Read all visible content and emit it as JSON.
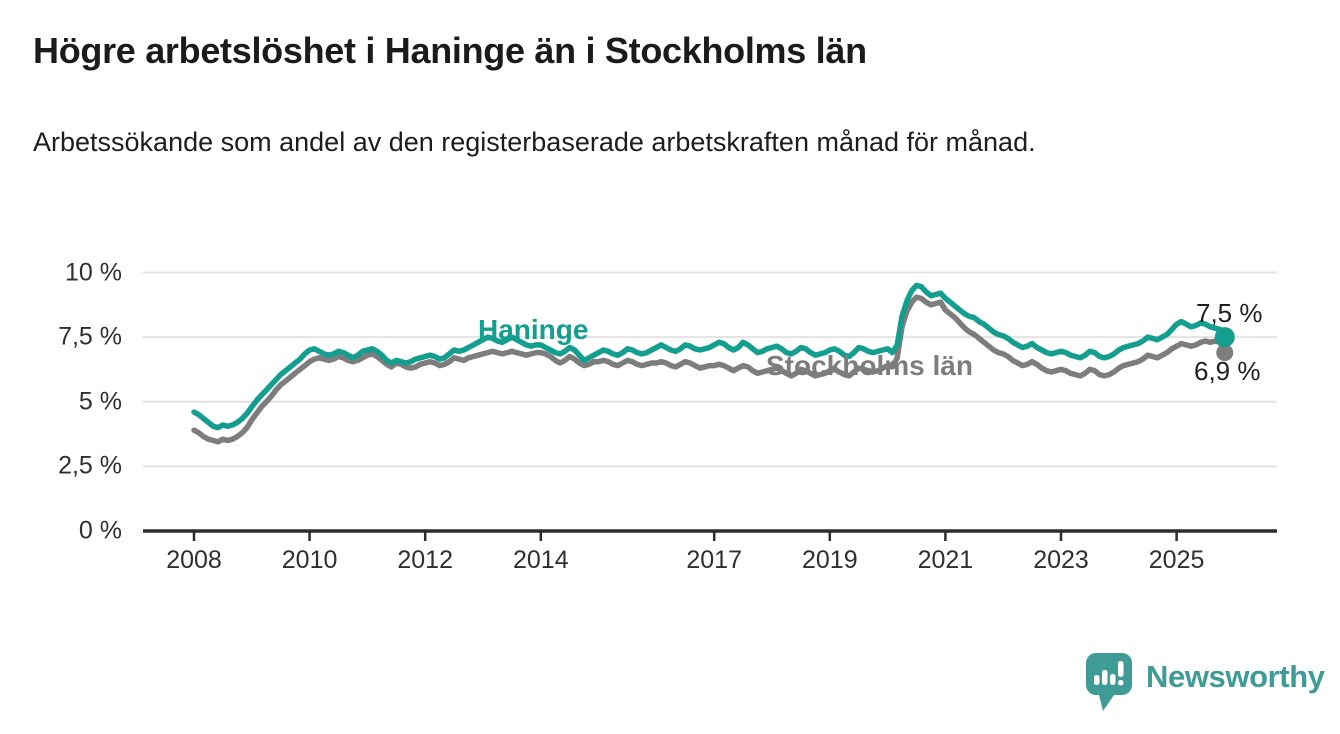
{
  "chart_data": {
    "type": "line",
    "title": "Högre arbetslöshet i Haninge än i Stockholms län",
    "subtitle": "Arbetssökande som andel av den registerbaserade arbetskraften månad för månad.",
    "unit": "%",
    "x_start": "2008-01",
    "x_end": "2025-11",
    "points_per_year": 12,
    "ylim": [
      0,
      10
    ],
    "grid": true,
    "y_ticks": [
      {
        "value": 0,
        "label": "0 %"
      },
      {
        "value": 2.5,
        "label": "2,5 %"
      },
      {
        "value": 5,
        "label": "5 %"
      },
      {
        "value": 7.5,
        "label": "7,5 %"
      },
      {
        "value": 10,
        "label": "10 %"
      }
    ],
    "x_ticks": [
      {
        "value": 2008,
        "label": "2008"
      },
      {
        "value": 2010,
        "label": "2010"
      },
      {
        "value": 2012,
        "label": "2012"
      },
      {
        "value": 2014,
        "label": "2014"
      },
      {
        "value": 2017,
        "label": "2017"
      },
      {
        "value": 2019,
        "label": "2019"
      },
      {
        "value": 2021,
        "label": "2021"
      },
      {
        "value": 2023,
        "label": "2023"
      },
      {
        "value": 2025,
        "label": "2025"
      }
    ],
    "series": [
      {
        "name": "Stockholms län",
        "color": "#7D7D7D",
        "end_label": "6,9 %",
        "end_value": 6.9,
        "values": [
          3.9,
          3.8,
          3.65,
          3.55,
          3.5,
          3.45,
          3.55,
          3.5,
          3.55,
          3.65,
          3.8,
          4.0,
          4.3,
          4.55,
          4.8,
          5.0,
          5.2,
          5.45,
          5.65,
          5.8,
          5.95,
          6.1,
          6.25,
          6.4,
          6.55,
          6.65,
          6.7,
          6.65,
          6.6,
          6.65,
          6.75,
          6.7,
          6.6,
          6.55,
          6.6,
          6.7,
          6.8,
          6.85,
          6.75,
          6.6,
          6.45,
          6.35,
          6.5,
          6.45,
          6.35,
          6.3,
          6.35,
          6.45,
          6.5,
          6.55,
          6.5,
          6.4,
          6.45,
          6.55,
          6.7,
          6.65,
          6.6,
          6.7,
          6.75,
          6.8,
          6.85,
          6.9,
          6.95,
          6.9,
          6.85,
          6.9,
          6.95,
          6.9,
          6.85,
          6.8,
          6.85,
          6.9,
          6.9,
          6.85,
          6.75,
          6.6,
          6.5,
          6.6,
          6.75,
          6.65,
          6.5,
          6.4,
          6.45,
          6.55,
          6.55,
          6.6,
          6.55,
          6.45,
          6.4,
          6.5,
          6.6,
          6.55,
          6.45,
          6.4,
          6.45,
          6.5,
          6.5,
          6.55,
          6.5,
          6.4,
          6.35,
          6.45,
          6.55,
          6.5,
          6.4,
          6.3,
          6.35,
          6.4,
          6.4,
          6.45,
          6.4,
          6.3,
          6.2,
          6.3,
          6.4,
          6.35,
          6.2,
          6.1,
          6.15,
          6.2,
          6.25,
          6.3,
          6.2,
          6.1,
          6.0,
          6.1,
          6.25,
          6.2,
          6.1,
          6.0,
          6.05,
          6.1,
          6.2,
          6.25,
          6.15,
          6.05,
          6.0,
          6.15,
          6.3,
          6.25,
          6.2,
          6.15,
          6.2,
          6.3,
          6.4,
          6.35,
          6.7,
          7.9,
          8.5,
          8.85,
          9.05,
          9.0,
          8.85,
          8.75,
          8.8,
          8.85,
          8.55,
          8.4,
          8.25,
          8.05,
          7.85,
          7.7,
          7.6,
          7.45,
          7.3,
          7.15,
          7.0,
          6.9,
          6.85,
          6.75,
          6.6,
          6.5,
          6.4,
          6.45,
          6.55,
          6.45,
          6.3,
          6.2,
          6.15,
          6.2,
          6.25,
          6.2,
          6.1,
          6.05,
          6.0,
          6.1,
          6.25,
          6.2,
          6.05,
          6.0,
          6.05,
          6.15,
          6.3,
          6.4,
          6.45,
          6.5,
          6.55,
          6.65,
          6.8,
          6.75,
          6.7,
          6.8,
          6.9,
          7.05,
          7.15,
          7.25,
          7.2,
          7.15,
          7.2,
          7.3,
          7.35,
          7.3,
          7.35,
          7.3,
          6.9
        ]
      },
      {
        "name": "Haninge",
        "color": "#149E8F",
        "end_label": "7,5 %",
        "end_value": 7.5,
        "values": [
          4.6,
          4.5,
          4.35,
          4.2,
          4.05,
          4.0,
          4.1,
          4.05,
          4.1,
          4.2,
          4.35,
          4.55,
          4.8,
          5.05,
          5.25,
          5.45,
          5.65,
          5.85,
          6.05,
          6.2,
          6.35,
          6.5,
          6.65,
          6.85,
          7.0,
          7.05,
          6.95,
          6.85,
          6.8,
          6.85,
          6.95,
          6.9,
          6.8,
          6.7,
          6.8,
          6.95,
          7.0,
          7.05,
          6.95,
          6.8,
          6.6,
          6.5,
          6.6,
          6.55,
          6.5,
          6.55,
          6.65,
          6.7,
          6.75,
          6.8,
          6.75,
          6.65,
          6.7,
          6.85,
          7.0,
          6.95,
          7.0,
          7.1,
          7.2,
          7.3,
          7.4,
          7.5,
          7.45,
          7.35,
          7.3,
          7.4,
          7.5,
          7.4,
          7.3,
          7.2,
          7.15,
          7.2,
          7.2,
          7.1,
          7.0,
          6.9,
          6.85,
          6.95,
          7.1,
          7.0,
          6.8,
          6.6,
          6.7,
          6.8,
          6.9,
          7.0,
          6.95,
          6.85,
          6.8,
          6.9,
          7.05,
          7.0,
          6.9,
          6.85,
          6.9,
          7.0,
          7.1,
          7.2,
          7.1,
          7.0,
          6.95,
          7.05,
          7.2,
          7.15,
          7.05,
          7.0,
          7.05,
          7.1,
          7.2,
          7.3,
          7.25,
          7.1,
          7.0,
          7.1,
          7.3,
          7.2,
          7.05,
          6.9,
          6.95,
          7.05,
          7.1,
          7.15,
          7.05,
          6.9,
          6.85,
          6.95,
          7.1,
          7.05,
          6.9,
          6.8,
          6.85,
          6.9,
          7.0,
          7.05,
          6.95,
          6.8,
          6.75,
          6.9,
          7.1,
          7.05,
          6.95,
          6.9,
          6.95,
          7.0,
          7.05,
          6.9,
          7.2,
          8.3,
          8.9,
          9.3,
          9.5,
          9.45,
          9.25,
          9.1,
          9.15,
          9.2,
          9.0,
          8.85,
          8.7,
          8.55,
          8.4,
          8.3,
          8.25,
          8.1,
          8.0,
          7.85,
          7.7,
          7.6,
          7.55,
          7.45,
          7.3,
          7.2,
          7.1,
          7.15,
          7.25,
          7.1,
          7.0,
          6.9,
          6.85,
          6.9,
          6.95,
          6.9,
          6.8,
          6.75,
          6.7,
          6.8,
          6.95,
          6.9,
          6.75,
          6.7,
          6.75,
          6.85,
          7.0,
          7.1,
          7.15,
          7.2,
          7.25,
          7.35,
          7.5,
          7.45,
          7.4,
          7.5,
          7.6,
          7.8,
          8.0,
          8.1,
          8.0,
          7.9,
          7.95,
          8.05,
          8.0,
          7.9,
          7.85,
          7.8,
          7.5
        ]
      }
    ]
  },
  "branding": {
    "name": "Newsworthy",
    "color": "#3E9B96"
  }
}
